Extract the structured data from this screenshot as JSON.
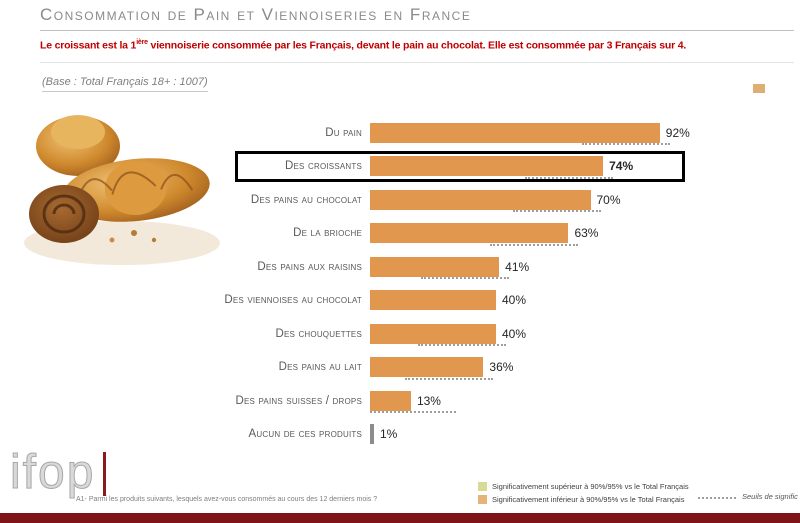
{
  "header": {
    "title": "Consommation de Pain et Viennoiseries en France",
    "subtitle_part1": "Le croissant est la 1",
    "subtitle_sup": "ière",
    "subtitle_part2": " viennoiserie consommée par les Français, devant le pain au chocolat. Elle est consommée par 3 Français sur 4.",
    "base_note": "(Base : Total Français 18+ : 1007)"
  },
  "chart_data": {
    "type": "bar",
    "orientation": "horizontal",
    "title": "Consommation de pain et viennoiseries en France",
    "xlim": [
      0,
      100
    ],
    "categories": [
      "Du pain",
      "Des croissants",
      "Des pains au chocolat",
      "De la brioche",
      "Des pains aux raisins",
      "Des viennoises au chocolat",
      "Des chouquettes",
      "Des pains au lait",
      "Des pains suisses / drops",
      "Aucun de ces produits"
    ],
    "values": [
      92,
      74,
      70,
      63,
      41,
      40,
      40,
      36,
      13,
      1
    ],
    "highlighted_category": "Des croissants",
    "bar_color": "#E1974E",
    "none_bar_color": "#8C8C8C",
    "rows": [
      {
        "label": "Du pain",
        "value": 92,
        "value_label": "92%",
        "dotted": true,
        "highlighted": false,
        "gray": false
      },
      {
        "label": "Des croissants",
        "value": 74,
        "value_label": "74%",
        "dotted": true,
        "highlighted": true,
        "gray": false
      },
      {
        "label": "Des pains au chocolat",
        "value": 70,
        "value_label": "70%",
        "dotted": true,
        "highlighted": false,
        "gray": false
      },
      {
        "label": "De la brioche",
        "value": 63,
        "value_label": "63%",
        "dotted": true,
        "highlighted": false,
        "gray": false
      },
      {
        "label": "Des pains aux raisins",
        "value": 41,
        "value_label": "41%",
        "dotted": true,
        "highlighted": false,
        "gray": false
      },
      {
        "label": "Des viennoises au chocolat",
        "value": 40,
        "value_label": "40%",
        "dotted": false,
        "highlighted": false,
        "gray": false
      },
      {
        "label": "Des chouquettes",
        "value": 40,
        "value_label": "40%",
        "dotted": true,
        "highlighted": false,
        "gray": false
      },
      {
        "label": "Des pains au lait",
        "value": 36,
        "value_label": "36%",
        "dotted": true,
        "highlighted": false,
        "gray": false
      },
      {
        "label": "Des pains suisses / drops",
        "value": 13,
        "value_label": "13%",
        "dotted": true,
        "highlighted": false,
        "gray": false
      },
      {
        "label": "Aucun de ces produits",
        "value": 1,
        "value_label": "1%",
        "dotted": false,
        "highlighted": false,
        "gray": true
      }
    ]
  },
  "legend": {
    "superior": {
      "color": "#D6DC96",
      "label": "Significativement supérieur à 90%/95% vs le Total Français"
    },
    "inferior": {
      "color": "#E4B478",
      "label": "Significativement inférieur à 90%/95% vs le Total Français"
    },
    "thresholds_label": "Seuils de signific"
  },
  "footer": {
    "question": "A1- Parmi les produits suivants, lesquels avez-vous consommés au cours des 12 derniers mois ?",
    "logo": "ifop"
  },
  "colors": {
    "subtitle_red": "#C00000",
    "bottom_bar": "#7E1417",
    "logo_red": "#8B1A1D",
    "title_gray": "#8A8A8A"
  }
}
